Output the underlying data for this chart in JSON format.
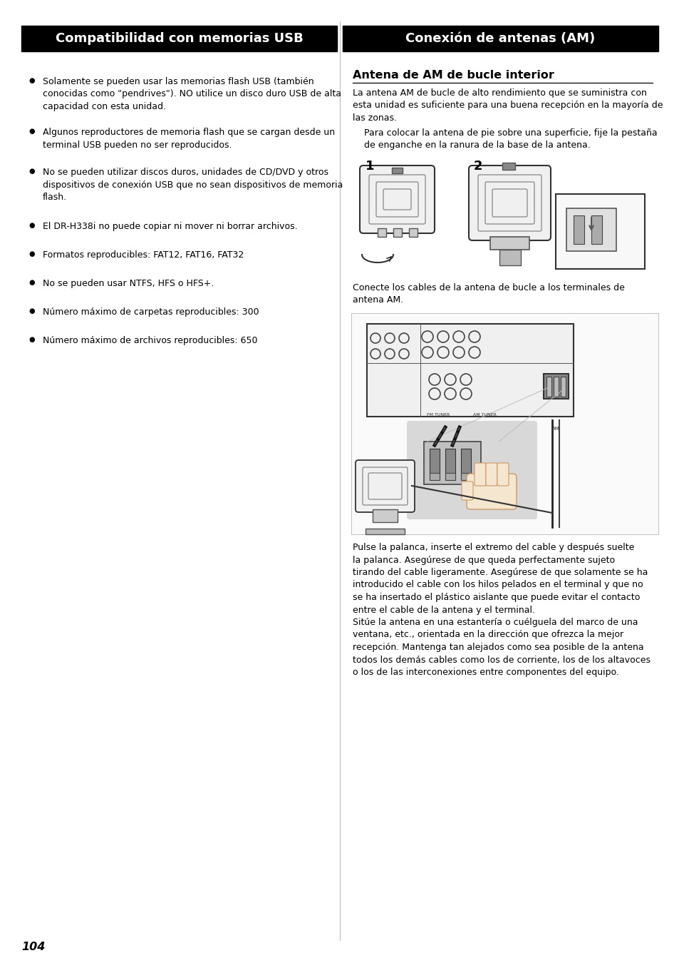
{
  "bg_color": "#ffffff",
  "page_number": "104",
  "left_header": "Compatibilidad con memorias USB",
  "right_header": "Conexión de antenas (AM)",
  "header_bg": "#000000",
  "header_text_color": "#ffffff",
  "left_bullets": [
    "Solamente se pueden usar las memorias flash USB (también\nconocidas como \"pendrives\"). NO utilice un disco duro USB de alta\ncapacidad con esta unidad.",
    "Algunos reproductores de memoria flash que se cargan desde un\nterminal USB pueden no ser reproducidos.",
    "No se pueden utilizar discos duros, unidades de CD/DVD y otros\ndispositivos de conexión USB que no sean dispositivos de memoria\nflash.",
    "El DR-H338i no puede copiar ni mover ni borrar archivos.",
    "Formatos reproducibles: FAT12, FAT16, FAT32",
    "No se pueden usar NTFS, HFS o HFS+.",
    "Número máximo de carpetas reproducibles: 300",
    "Número máximo de archivos reproducibles: 650"
  ],
  "right_section_title": "Antena de AM de bucle interior",
  "right_para1": "La antena AM de bucle de alto rendimiento que se suministra con\nesta unidad es suficiente para una buena recepción en la mayoría de\nlas zonas.",
  "right_para2": "    Para colocar la antena de pie sobre una superficie, fije la pestaña\n    de enganche en la ranura de la base de la antena.",
  "right_para3": "Conecte los cables de la antena de bucle a los terminales de\nantena AM.",
  "right_para4": "Pulse la palanca, inserte el extremo del cable y después suelte\nla palanca. Asegúrese de que queda perfectamente sujeto\ntirando del cable ligeramente. Asegúrese de que solamente se ha\nintroducido el cable con los hilos pelados en el terminal y que no\nse ha insertado el plástico aislante que puede evitar el contacto\nentre el cable de la antena y el terminal.",
  "right_para5": "Sitúe la antena en una estantería o cuélguela del marco de una\nventana, etc., orientada en la dirección que ofrezca la mejor\nrecepción. Mantenga tan alejados como sea posible de la antena\ntodos los demás cables como los de corriente, los de los altavoces\no los de las interconexiones entre componentes del equipo.",
  "text_color": "#000000",
  "dark_gray": "#555555",
  "mid_gray": "#888888",
  "light_gray": "#cccccc",
  "panel_gray": "#e0e0e0",
  "zoom_bg": "#d8d8d8"
}
